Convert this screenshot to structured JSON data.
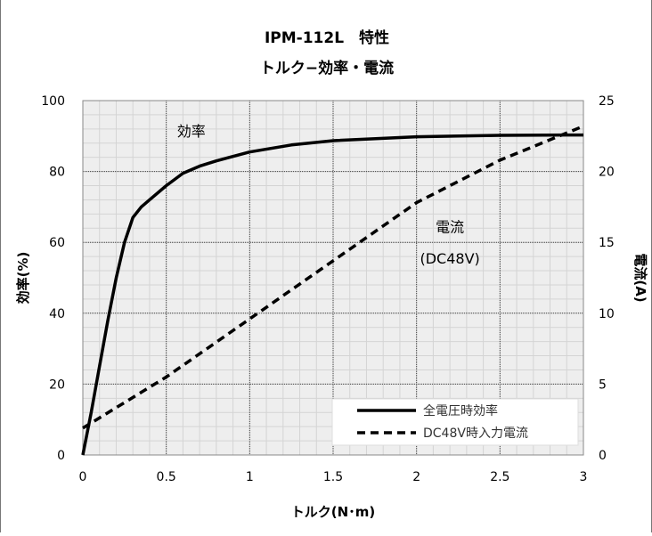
{
  "chart_data": {
    "type": "line",
    "title": "IPM-112L　特性",
    "subtitle": "トルク−効率・電流",
    "xlabel": "トルク(N･m)",
    "ylabel": "効率(%)",
    "y2label": "電流(A)",
    "xlim": [
      0,
      3
    ],
    "ylim": [
      0,
      100
    ],
    "y2lim": [
      0,
      25
    ],
    "x_ticks": [
      "0",
      "0.5",
      "1",
      "1.5",
      "2",
      "2.5",
      "3"
    ],
    "y_ticks": [
      "0",
      "20",
      "40",
      "60",
      "80",
      "100"
    ],
    "y2_ticks": [
      "0",
      "5",
      "10",
      "15",
      "20",
      "25"
    ],
    "grid": true,
    "legend_position": "bottom-right",
    "series": [
      {
        "name": "全電圧時効率",
        "axis": "left",
        "style": "solid",
        "color": "#000000",
        "x": [
          0,
          0.05,
          0.1,
          0.15,
          0.2,
          0.25,
          0.3,
          0.35,
          0.4,
          0.5,
          0.6,
          0.7,
          0.8,
          1.0,
          1.25,
          1.5,
          2.0,
          2.5,
          3.0
        ],
        "values": [
          0,
          12,
          25,
          38,
          50,
          60,
          67,
          70,
          72,
          76,
          79.5,
          81.5,
          83,
          85.5,
          87.5,
          88.7,
          89.8,
          90.2,
          90.3
        ]
      },
      {
        "name": "DC48V時入力電流",
        "axis": "right",
        "style": "dashed",
        "color": "#000000",
        "x": [
          0,
          0.5,
          1.0,
          1.5,
          2.0,
          2.5,
          3.0
        ],
        "values": [
          1.9,
          5.5,
          9.6,
          13.7,
          17.8,
          20.8,
          23.2
        ]
      }
    ],
    "annotations": [
      {
        "text": "効率",
        "x": 0.65,
        "y": 90
      },
      {
        "text": "電流",
        "x": 2.2,
        "y": 63
      },
      {
        "text": "(DC48V)",
        "x": 2.2,
        "y": 54
      }
    ]
  }
}
